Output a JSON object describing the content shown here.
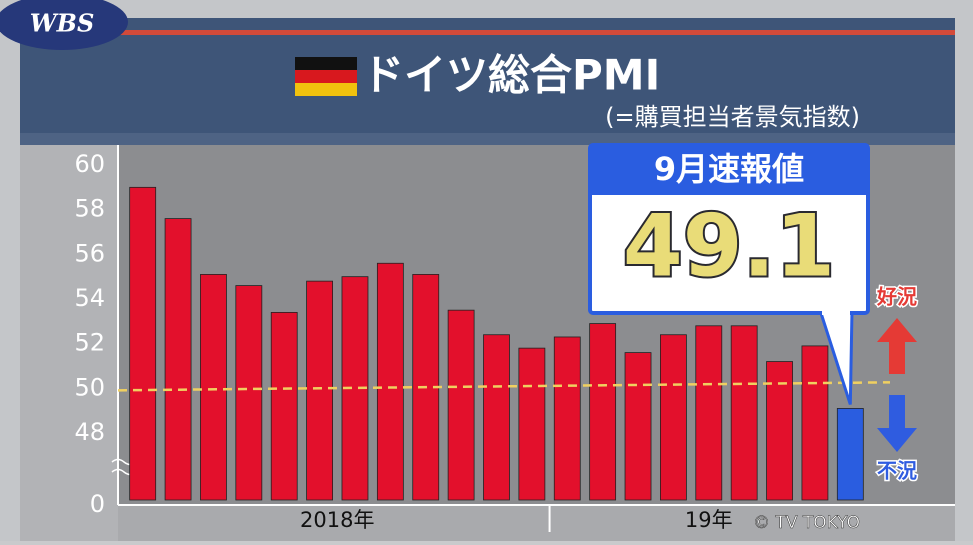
{
  "logo": "WBS",
  "copyright": "© TV TOKYO",
  "chart_data": {
    "type": "bar",
    "title": "ドイツ総合PMI",
    "subtitle": "(=購買担当者景気指数)",
    "categories": [
      null,
      null,
      null,
      null,
      null,
      null,
      null,
      null,
      null,
      null,
      null,
      null,
      null,
      null,
      null,
      null,
      null,
      null,
      null,
      null,
      null
    ],
    "x_groups": [
      {
        "label": "2018年",
        "count": 12
      },
      {
        "label": "19年",
        "count": 9
      }
    ],
    "values": [
      59.0,
      57.6,
      55.1,
      54.6,
      53.4,
      54.8,
      55.0,
      55.6,
      55.1,
      53.5,
      52.4,
      51.8,
      52.3,
      52.9,
      51.6,
      52.4,
      52.8,
      52.8,
      51.2,
      51.9,
      49.1
    ],
    "colors": [
      "#e3102c",
      "#e3102c",
      "#e3102c",
      "#e3102c",
      "#e3102c",
      "#e3102c",
      "#e3102c",
      "#e3102c",
      "#e3102c",
      "#e3102c",
      "#e3102c",
      "#e3102c",
      "#e3102c",
      "#e3102c",
      "#e3102c",
      "#e3102c",
      "#e3102c",
      "#e3102c",
      "#e3102c",
      "#e3102c",
      "#2a5de0"
    ],
    "ylim": [
      45,
      60
    ],
    "yticks": [
      48,
      50,
      52,
      54,
      56,
      58,
      60
    ],
    "baseline_label": "0",
    "reference_line": 50,
    "callout": {
      "title": "9月速報値",
      "index": 20
    },
    "up_label": "好況",
    "down_label": "不況"
  }
}
